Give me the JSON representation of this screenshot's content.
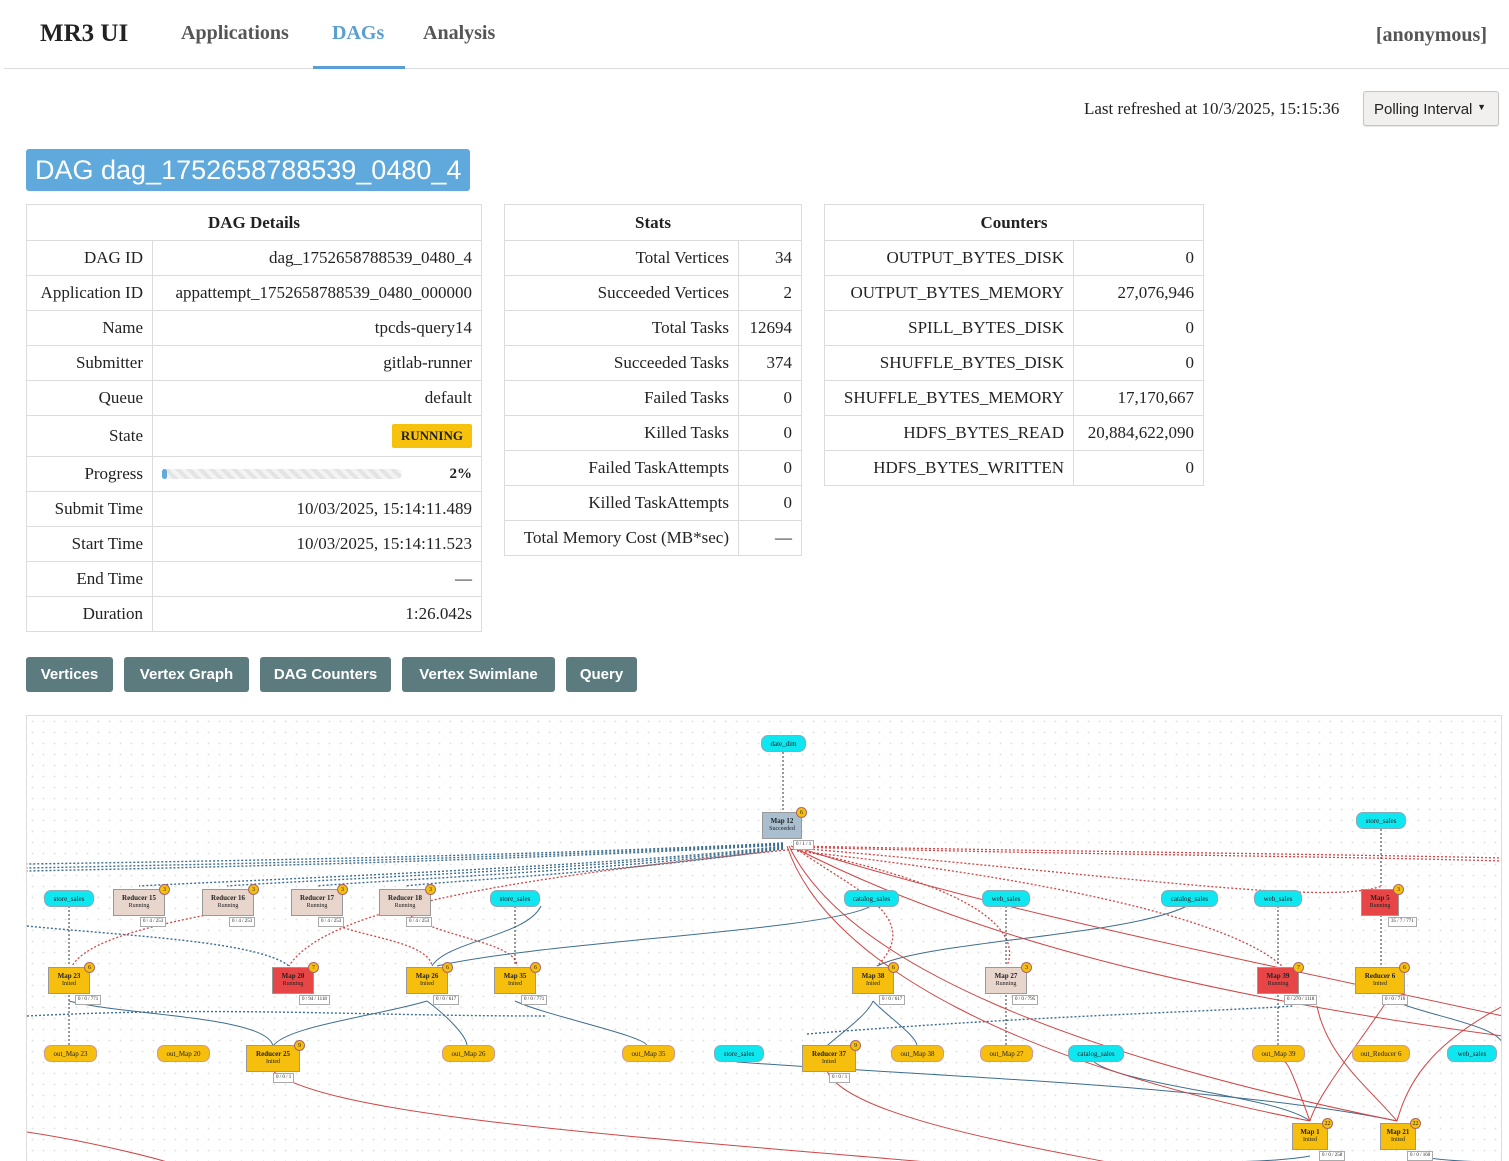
{
  "nav": {
    "brand": "MR3 UI",
    "tabs": [
      {
        "label": "Applications",
        "active": false
      },
      {
        "label": "DAGs",
        "active": true
      },
      {
        "label": "Analysis",
        "active": false
      }
    ],
    "user": "[anonymous]"
  },
  "refresh": {
    "text": "Last refreshed at 10/3/2025, 15:15:36",
    "polling_label": "Polling Interval"
  },
  "dag_title": "DAG dag_1752658788539_0480_4",
  "details": {
    "header": "DAG Details",
    "rows": [
      {
        "k": "DAG ID",
        "v": "dag_1752658788539_0480_4"
      },
      {
        "k": "Application ID",
        "v": "appattempt_1752658788539_0480_000000"
      },
      {
        "k": "Name",
        "v": "tpcds-query14"
      },
      {
        "k": "Submitter",
        "v": "gitlab-runner"
      },
      {
        "k": "Queue",
        "v": "default"
      },
      {
        "k": "State",
        "v": "RUNNING"
      },
      {
        "k": "Progress",
        "v": "2%",
        "fraction": 0.02
      },
      {
        "k": "Submit Time",
        "v": "10/03/2025, 15:14:11.489"
      },
      {
        "k": "Start Time",
        "v": "10/03/2025, 15:14:11.523"
      },
      {
        "k": "End Time",
        "v": "—"
      },
      {
        "k": "Duration",
        "v": "1:26.042s"
      }
    ]
  },
  "stats": {
    "header": "Stats",
    "rows": [
      {
        "k": "Total Vertices",
        "v": "34"
      },
      {
        "k": "Succeeded Vertices",
        "v": "2"
      },
      {
        "k": "Total Tasks",
        "v": "12694"
      },
      {
        "k": "Succeeded Tasks",
        "v": "374"
      },
      {
        "k": "Failed Tasks",
        "v": "0"
      },
      {
        "k": "Killed Tasks",
        "v": "0"
      },
      {
        "k": "Failed TaskAttempts",
        "v": "0"
      },
      {
        "k": "Killed TaskAttempts",
        "v": "0"
      },
      {
        "k": "Total Memory Cost (MB*sec)",
        "v": "—"
      }
    ]
  },
  "counters": {
    "header": "Counters",
    "rows": [
      {
        "k": "OUTPUT_BYTES_DISK",
        "v": "0"
      },
      {
        "k": "OUTPUT_BYTES_MEMORY",
        "v": "27,076,946"
      },
      {
        "k": "SPILL_BYTES_DISK",
        "v": "0"
      },
      {
        "k": "SHUFFLE_BYTES_DISK",
        "v": "0"
      },
      {
        "k": "SHUFFLE_BYTES_MEMORY",
        "v": "17,170,667"
      },
      {
        "k": "HDFS_BYTES_READ",
        "v": "20,884,622,090"
      },
      {
        "k": "HDFS_BYTES_WRITTEN",
        "v": "0"
      }
    ]
  },
  "tab_buttons": [
    "Vertices",
    "Vertex Graph",
    "DAG Counters",
    "Vertex Swimlane",
    "Query"
  ],
  "colors": {
    "accent": "#5fa9dd",
    "button": "#5b7b7f",
    "running_badge": "#f7c20c",
    "input_node": "#0ee7f0",
    "output_node": "#f6bf0e",
    "vertex_running": "#e84646",
    "vertex_inited": "#f6bf0e",
    "vertex_succeeded": "#a9bfcf",
    "reducer_running": "#e8d5cc"
  },
  "graph": {
    "inputs": [
      "date_dim",
      "store_sales",
      "store_sales",
      "store_sales",
      "catalog_sales",
      "web_sales",
      "catalog_sales",
      "web_sales",
      "store_sales",
      "catalog_sales",
      "web_sales"
    ],
    "outputs": [
      "out_Map 23",
      "out_Map 20",
      "out_Map 26",
      "out_Map 35",
      "out_Map 38",
      "out_Map 27",
      "out_Map 39",
      "out_Reducer 6"
    ],
    "vertices": [
      {
        "name": "Map 12",
        "state": "Succeeded",
        "badge": "6",
        "tasks": "0 / 1 / 1"
      },
      {
        "name": "Reducer 15",
        "state": "Running",
        "badge": "3",
        "tasks": "0 / 4 / 253"
      },
      {
        "name": "Reducer 16",
        "state": "Running",
        "badge": "3",
        "tasks": "0 / 4 / 253"
      },
      {
        "name": "Reducer 17",
        "state": "Running",
        "badge": "3",
        "tasks": "0 / 4 / 253"
      },
      {
        "name": "Reducer 18",
        "state": "Running",
        "badge": "3",
        "tasks": "0 / 4 / 253"
      },
      {
        "name": "Map 5",
        "state": "Running",
        "badge": "3",
        "tasks": "35 / 7 / 771"
      },
      {
        "name": "Map 23",
        "state": "Inited",
        "badge": "6",
        "tasks": "0 / 0 / 771"
      },
      {
        "name": "Map 20",
        "state": "Running",
        "badge": "7",
        "tasks": "0 / 94 / 1118"
      },
      {
        "name": "Map 26",
        "state": "Inited",
        "badge": "6",
        "tasks": "0 / 0 / 617"
      },
      {
        "name": "Map 35",
        "state": "Inited",
        "badge": "6",
        "tasks": "0 / 0 / 771"
      },
      {
        "name": "Map 38",
        "state": "Inited",
        "badge": "6",
        "tasks": "0 / 0 / 617"
      },
      {
        "name": "Map 27",
        "state": "Running",
        "badge": "3",
        "tasks": "0 / 0 / 795"
      },
      {
        "name": "Map 39",
        "state": "Running",
        "badge": "7",
        "tasks": "0 / 270 / 1118"
      },
      {
        "name": "Reducer 6",
        "state": "Inited",
        "badge": "6",
        "tasks": "0 / 0 / 716"
      },
      {
        "name": "Reducer 25",
        "state": "Inited",
        "badge": "9",
        "tasks": "0 / 0 / 1"
      },
      {
        "name": "Reducer 37",
        "state": "Inited",
        "badge": "9",
        "tasks": "0 / 0 / 1"
      },
      {
        "name": "Map 1",
        "state": "Inited",
        "badge": "22",
        "tasks": "0 / 0 / 258"
      },
      {
        "name": "Map 21",
        "state": "Inited",
        "badge": "22",
        "tasks": "0 / 0 / 160"
      }
    ]
  }
}
